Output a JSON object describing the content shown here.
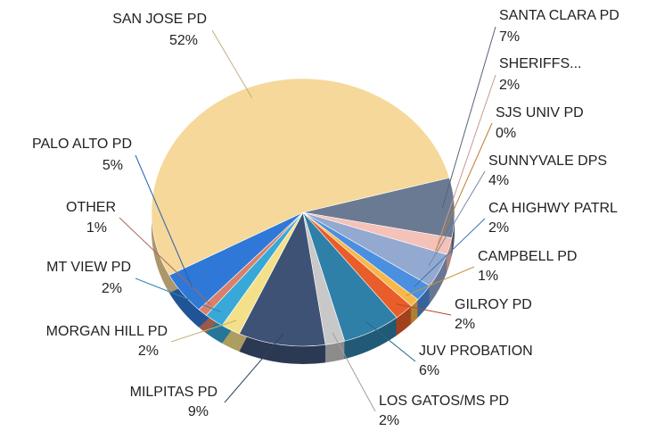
{
  "chart_data": {
    "type": "pie",
    "categories": [
      "SANTA CLARA PD",
      "SHERIFFS...",
      "SJS UNIV PD",
      "SUNNYVALE DPS",
      "CA HIGHWY PATRL",
      "CAMPBELL PD",
      "GILROY PD",
      "JUV PROBATION",
      "LOS GATOS/MS PD",
      "MILPITAS PD",
      "MORGAN HILL PD",
      "MT VIEW PD",
      "OTHER",
      "PALO ALTO PD",
      "SAN JOSE PD"
    ],
    "values": [
      7,
      2,
      0,
      4,
      2,
      1,
      2,
      6,
      2,
      9,
      2,
      2,
      1,
      5,
      52
    ],
    "value_labels": [
      "7%",
      "2%",
      "0%",
      "4%",
      "2%",
      "1%",
      "2%",
      "6%",
      "2%",
      "9%",
      "2%",
      "2%",
      "1%",
      "5%",
      "52%"
    ],
    "colors": [
      "#6b7a93",
      "#f4c2b8",
      "#f29a2e",
      "#93a9d0",
      "#4b8fe0",
      "#f7b84a",
      "#e85d2a",
      "#2e80a8",
      "#c8c8c8",
      "#3d5275",
      "#f5e08a",
      "#38a8d8",
      "#d9806a",
      "#2f78d8",
      "#f5d89a"
    ]
  }
}
